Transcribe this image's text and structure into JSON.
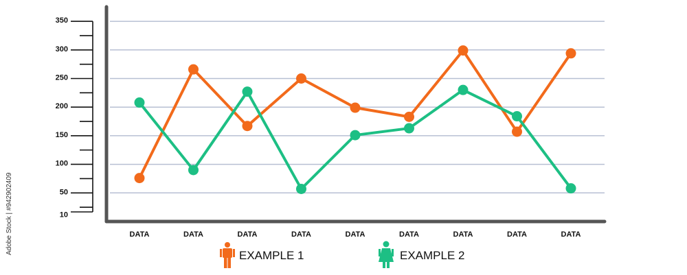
{
  "chart_data": {
    "type": "line",
    "categories": [
      "DATA",
      "DATA",
      "DATA",
      "DATA",
      "DATA",
      "DATA",
      "DATA",
      "DATA",
      "DATA"
    ],
    "y_ticks": [
      "350",
      "300",
      "250",
      "200",
      "150",
      "100",
      "50",
      "10"
    ],
    "ylim": [
      0,
      350
    ],
    "grid": true,
    "legend_position": "bottom-center",
    "series": [
      {
        "name": "EXAMPLE 1",
        "color": "#F26A1B",
        "legend_icon": "male-figure-icon",
        "values": [
          76,
          266,
          167,
          250,
          199,
          183,
          299,
          157,
          294
        ]
      },
      {
        "name": "EXAMPLE 2",
        "color": "#1DBF84",
        "legend_icon": "female-figure-icon",
        "values": [
          208,
          90,
          227,
          57,
          151,
          163,
          230,
          184,
          58
        ]
      }
    ]
  },
  "side_text": "Adobe Stock | #942902409"
}
